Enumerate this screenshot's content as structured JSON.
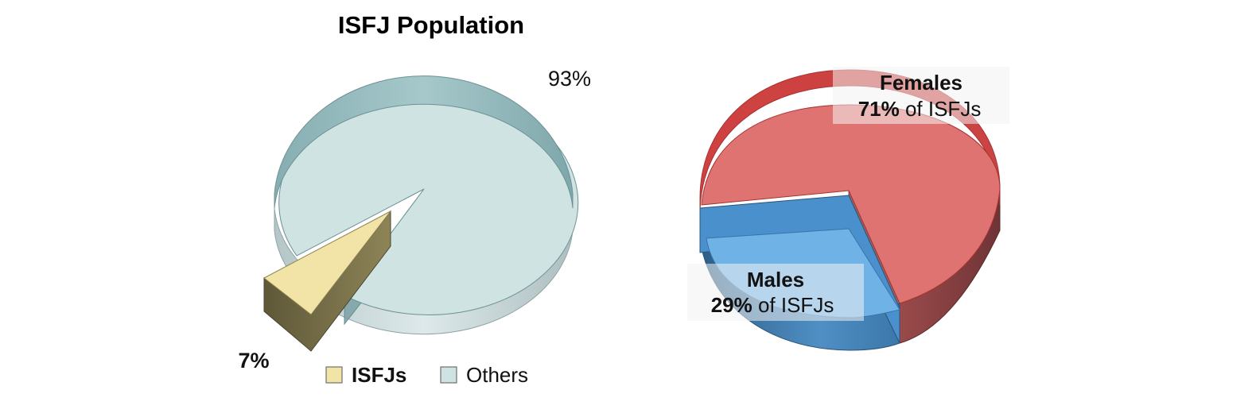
{
  "chart_data": [
    {
      "type": "pie",
      "title": "ISFJ Population",
      "style": "3d-exploded",
      "categories": [
        "ISFJs",
        "Others"
      ],
      "values": [
        7,
        93
      ],
      "value_labels": [
        "7%",
        "93%"
      ],
      "colors": [
        "#f2e3a6",
        "#cfe3e3"
      ],
      "legend": {
        "position": "bottom",
        "entries": [
          "ISFJs",
          "Others"
        ]
      }
    },
    {
      "type": "pie",
      "style": "3d",
      "categories": [
        "Females",
        "Males"
      ],
      "values": [
        71,
        29
      ],
      "colors": [
        "#df7371",
        "#6fb3e6"
      ],
      "annotations": [
        {
          "category": "Females",
          "title": "Females",
          "percent": "71%",
          "suffix": " of ISFJs"
        },
        {
          "category": "Males",
          "title": "Males",
          "percent": "29%",
          "suffix": " of ISFJs"
        }
      ]
    }
  ]
}
